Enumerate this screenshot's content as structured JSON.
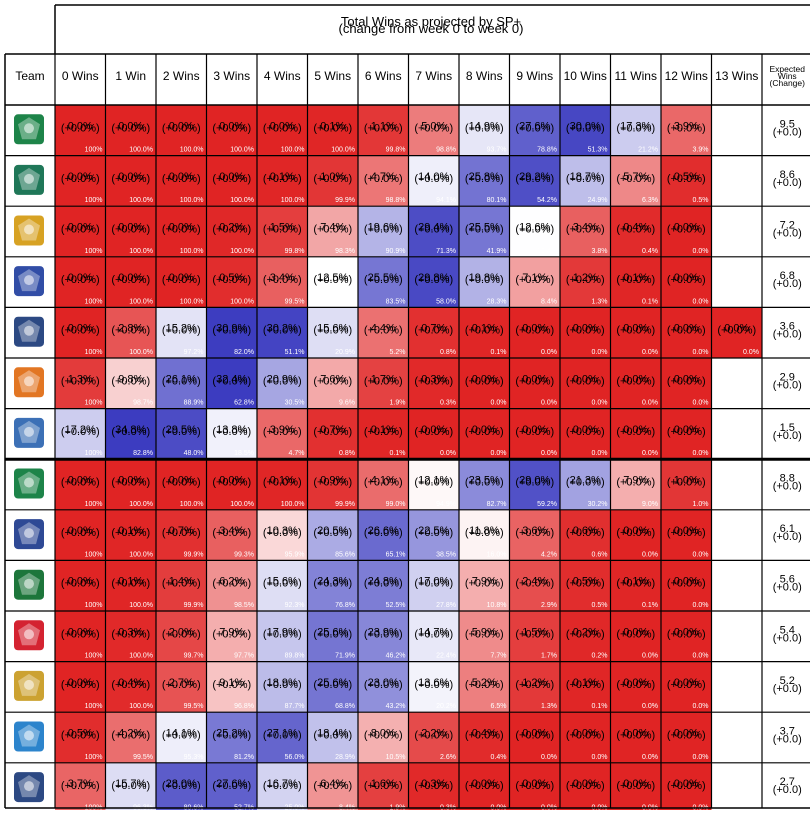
{
  "chart_data": {
    "type": "heatmap",
    "title": "Total Wins as projected by SP+",
    "subtitle": "(change from week 0 to week 0)",
    "header_label": "Team",
    "columns": [
      "0 Wins",
      "1 Win",
      "2 Wins",
      "3 Wins",
      "4 Wins",
      "5 Wins",
      "6 Wins",
      "7 Wins",
      "8 Wins",
      "9 Wins",
      "10 Wins",
      "11 Wins",
      "12 Wins",
      "13 Wins"
    ],
    "expected_header": [
      "Expected",
      "Wins",
      "(Change)"
    ],
    "change_text": "(+0.0%)",
    "exp_change_text": "(+0.0)",
    "colors": {
      "low": "#e02424",
      "mid": "#ffffff",
      "high": "#3c3cc0"
    },
    "teams": [
      {
        "logo": "north-texas-logo",
        "color": "#0a7a3a",
        "expected": "9.5",
        "probs": [
          "0.0%",
          "0.0%",
          "0.0%",
          "0.0%",
          "0.0%",
          "0.1%",
          "1.1%",
          "5.0%",
          "14.9%",
          "27.6%",
          "30.0%",
          "17.3%",
          "3.9%",
          null
        ],
        "values": [
          0,
          0,
          0,
          0,
          0,
          0.1,
          1.1,
          5.0,
          14.9,
          27.6,
          30.0,
          17.3,
          3.9,
          null
        ],
        "cum": [
          "100%",
          "100.0%",
          "100.0%",
          "100.0%",
          "100.0%",
          "100.0%",
          "99.8%",
          "98.8%",
          "93.7%",
          "78.8%",
          "51.3%",
          "21.2%",
          "3.9%",
          null
        ]
      },
      {
        "logo": "utsa-logo",
        "color": "#0c6b4a",
        "expected": "8.6",
        "probs": [
          "0.0%",
          "0.0%",
          "0.0%",
          "0.0%",
          "0.1%",
          "1.0%",
          "4.7%",
          "14.0%",
          "25.8%",
          "29.2%",
          "18.7%",
          "5.7%",
          "0.5%",
          null
        ],
        "values": [
          0,
          0,
          0,
          0,
          0.1,
          1.0,
          4.7,
          14.0,
          25.8,
          29.2,
          18.7,
          5.7,
          0.5,
          null
        ],
        "cum": [
          "100%",
          "100.0%",
          "100.0%",
          "100.0%",
          "100.0%",
          "99.9%",
          "98.8%",
          "94.1%",
          "80.1%",
          "54.2%",
          "24.9%",
          "6.3%",
          "0.5%",
          null
        ]
      },
      {
        "logo": "southern-miss-logo",
        "color": "#d49a10",
        "expected": "7.2",
        "probs": [
          "0.0%",
          "0.0%",
          "0.0%",
          "0.2%",
          "1.5%",
          "7.4%",
          "19.6%",
          "29.4%",
          "25.5%",
          "12.6%",
          "3.4%",
          "0.4%",
          "0.0%",
          null
        ],
        "values": [
          0,
          0,
          0,
          0.2,
          1.5,
          7.4,
          19.6,
          29.4,
          25.5,
          12.6,
          3.4,
          0.4,
          0.0,
          null
        ],
        "cum": [
          "100%",
          "100.0%",
          "100.0%",
          "100.0%",
          "99.8%",
          "98.3%",
          "90.9%",
          "71.3%",
          "41.9%",
          "16.4%",
          "3.8%",
          "0.4%",
          "0.0%",
          null
        ]
      },
      {
        "logo": "louisiana-tech-logo",
        "color": "#1f3e9e",
        "expected": "6.8",
        "probs": [
          "0.0%",
          "0.0%",
          "0.0%",
          "0.5%",
          "3.4%",
          "12.5%",
          "25.5%",
          "29.8%",
          "19.8%",
          "7.1%",
          "1.2%",
          "0.1%",
          "0.0%",
          null
        ],
        "values": [
          0,
          0,
          0,
          0.5,
          3.4,
          12.5,
          25.5,
          29.8,
          19.8,
          7.1,
          1.2,
          0.1,
          0.0,
          null
        ],
        "cum": [
          "100%",
          "100.0%",
          "100.0%",
          "100.0%",
          "99.5%",
          "96.0%",
          "83.5%",
          "58.0%",
          "28.3%",
          "8.4%",
          "1.3%",
          "0.1%",
          "0.0%",
          null
        ]
      },
      {
        "logo": "rice-logo",
        "color": "#1a3a78",
        "expected": "3.6",
        "probs": [
          "0.0%",
          "2.8%",
          "15.2%",
          "30.9%",
          "30.2%",
          "15.6%",
          "4.4%",
          "0.7%",
          "0.1%",
          "0.0%",
          "0.0%",
          "0.0%",
          "0.0%",
          "0.0%"
        ],
        "values": [
          0,
          2.8,
          15.2,
          30.9,
          30.2,
          15.6,
          4.4,
          0.7,
          0.1,
          0.0,
          0.0,
          0.0,
          0.0,
          0.0
        ],
        "cum": [
          "100%",
          "100.0%",
          "97.2%",
          "82.0%",
          "51.1%",
          "20.9%",
          "5.2%",
          "0.8%",
          "0.1%",
          "0.0%",
          "0.0%",
          "0.0%",
          "0.0%",
          "0.0%"
        ]
      },
      {
        "logo": "utep-logo",
        "color": "#e06a10",
        "expected": "2.9",
        "probs": [
          "1.3%",
          "9.8%",
          "26.1%",
          "32.4%",
          "20.9%",
          "7.6%",
          "1.7%",
          "0.3%",
          "0.0%",
          "0.0%",
          "0.0%",
          "0.0%",
          "0.0%",
          null
        ],
        "values": [
          1.3,
          9.8,
          26.1,
          32.4,
          20.9,
          7.6,
          1.7,
          0.3,
          0.0,
          0.0,
          0.0,
          0.0,
          0.0,
          null
        ],
        "cum": [
          "100%",
          "98.7%",
          "88.9%",
          "62.8%",
          "30.5%",
          "9.6%",
          "1.9%",
          "0.3%",
          "0.0%",
          "0.0%",
          "0.0%",
          "0.0%",
          "0.0%",
          null
        ]
      },
      {
        "logo": "charlotte-logo",
        "color": "#2b64b0",
        "expected": "1.5",
        "probs": [
          "17.2%",
          "34.8%",
          "29.5%",
          "13.8%",
          "3.9%",
          "0.7%",
          "0.1%",
          "0.0%",
          "0.0%",
          "0.0%",
          "0.0%",
          "0.0%",
          "0.0%",
          null
        ],
        "values": [
          17.2,
          34.8,
          29.5,
          13.8,
          3.9,
          0.7,
          0.1,
          0.0,
          0.0,
          0.0,
          0.0,
          0.0,
          0.0,
          null
        ],
        "cum": [
          "100%",
          "82.8%",
          "48.0%",
          "18.5%",
          "4.7%",
          "0.8%",
          "0.1%",
          "0.0%",
          "0.0%",
          "0.0%",
          "0.0%",
          "0.0%",
          "0.0%",
          null
        ]
      },
      {
        "logo": "marshall-logo",
        "color": "#0a7a3a",
        "expected": "8.8",
        "probs": [
          "0.0%",
          "0.0%",
          "0.0%",
          "0.0%",
          "0.1%",
          "0.9%",
          "4.1%",
          "12.1%",
          "23.5%",
          "29.0%",
          "21.3%",
          "7.9%",
          "1.0%",
          null
        ],
        "values": [
          0,
          0,
          0,
          0,
          0.1,
          0.9,
          4.1,
          12.1,
          23.5,
          29.0,
          21.3,
          7.9,
          1.0,
          null
        ],
        "cum": [
          "100%",
          "100.0%",
          "100.0%",
          "100.0%",
          "100.0%",
          "99.9%",
          "99.0%",
          "94.9%",
          "82.7%",
          "59.2%",
          "30.2%",
          "9.0%",
          "1.0%",
          null
        ]
      },
      {
        "logo": "fau-logo",
        "color": "#1c3a8c",
        "expected": "6.1",
        "probs": [
          "0.0%",
          "0.1%",
          "0.7%",
          "3.4%",
          "10.3%",
          "20.5%",
          "26.6%",
          "22.5%",
          "11.8%",
          "3.6%",
          "0.6%",
          "0.0%",
          "0.0%",
          null
        ],
        "values": [
          0,
          0.1,
          0.7,
          3.4,
          10.3,
          20.5,
          26.6,
          22.5,
          11.8,
          3.6,
          0.6,
          0.0,
          0.0,
          null
        ],
        "cum": [
          "100%",
          "100.0%",
          "99.9%",
          "99.3%",
          "95.9%",
          "85.6%",
          "65.1%",
          "38.5%",
          "16.0%",
          "4.2%",
          "0.6%",
          "0.0%",
          "0.0%",
          null
        ]
      },
      {
        "logo": "charlotte-49ers-logo",
        "color": "#0a6a2a",
        "expected": "5.6",
        "probs": [
          "0.0%",
          "0.1%",
          "1.4%",
          "6.2%",
          "15.6%",
          "24.3%",
          "24.8%",
          "17.0%",
          "7.9%",
          "2.4%",
          "0.5%",
          "0.1%",
          "0.0%",
          null
        ],
        "values": [
          0,
          0.1,
          1.4,
          6.2,
          15.6,
          24.3,
          24.8,
          17.0,
          7.9,
          2.4,
          0.5,
          0.1,
          0.0,
          null
        ],
        "cum": [
          "100%",
          "100.0%",
          "99.9%",
          "98.5%",
          "92.3%",
          "76.8%",
          "52.5%",
          "27.8%",
          "10.8%",
          "2.9%",
          "0.5%",
          "0.1%",
          "0.0%",
          null
        ]
      },
      {
        "logo": "wku-logo",
        "color": "#d01020",
        "expected": "5.4",
        "probs": [
          "0.0%",
          "0.3%",
          "2.0%",
          "7.9%",
          "17.9%",
          "25.6%",
          "23.9%",
          "14.7%",
          "5.9%",
          "1.5%",
          "0.2%",
          "0.0%",
          "0.0%",
          null
        ],
        "values": [
          0,
          0.3,
          2.0,
          7.9,
          17.9,
          25.6,
          23.9,
          14.7,
          5.9,
          1.5,
          0.2,
          0.0,
          0.0,
          null
        ],
        "cum": [
          "100%",
          "100.0%",
          "99.7%",
          "97.7%",
          "89.8%",
          "71.9%",
          "46.2%",
          "22.4%",
          "7.7%",
          "1.7%",
          "0.2%",
          "0.0%",
          "0.0%",
          null
        ]
      },
      {
        "logo": "fiu-logo",
        "color": "#c89a20",
        "expected": "5.2",
        "probs": [
          "0.0%",
          "0.4%",
          "2.7%",
          "9.1%",
          "18.9%",
          "25.6%",
          "23.0%",
          "13.6%",
          "5.2%",
          "1.2%",
          "0.1%",
          "0.0%",
          "0.0%",
          null
        ],
        "values": [
          0,
          0.4,
          2.7,
          9.1,
          18.9,
          25.6,
          23.0,
          13.6,
          5.2,
          1.2,
          0.1,
          0.0,
          0.0,
          null
        ],
        "cum": [
          "100%",
          "100.0%",
          "99.5%",
          "96.8%",
          "87.7%",
          "68.8%",
          "43.2%",
          "20.2%",
          "6.5%",
          "1.3%",
          "0.1%",
          "0.0%",
          "0.0%",
          null
        ]
      },
      {
        "logo": "middle-tennessee-logo",
        "color": "#1a7ac8",
        "expected": "3.7",
        "probs": [
          "0.5%",
          "4.2%",
          "14.1%",
          "25.2%",
          "27.1%",
          "18.4%",
          "8.0%",
          "2.2%",
          "0.4%",
          "0.0%",
          "0.0%",
          "0.0%",
          "0.0%",
          null
        ],
        "values": [
          0.5,
          4.2,
          14.1,
          25.2,
          27.1,
          18.4,
          8.0,
          2.2,
          0.4,
          0.0,
          0.0,
          0.0,
          0.0,
          null
        ],
        "cum": [
          "100%",
          "99.5%",
          "95.3%",
          "81.2%",
          "56.0%",
          "28.9%",
          "10.5%",
          "2.6%",
          "0.4%",
          "0.0%",
          "0.0%",
          "0.0%",
          "0.0%",
          null
        ]
      },
      {
        "logo": "old-dominion-logo",
        "color": "#1a3a78",
        "expected": "2.7",
        "probs": [
          "3.7%",
          "15.7%",
          "28.0%",
          "27.6%",
          "16.7%",
          "6.4%",
          "1.6%",
          "0.3%",
          "0.0%",
          "0.0%",
          "0.0%",
          "0.0%",
          "0.0%",
          null
        ],
        "values": [
          3.7,
          15.7,
          28.0,
          27.6,
          16.7,
          6.4,
          1.6,
          0.3,
          0.0,
          0.0,
          0.0,
          0.0,
          0.0,
          null
        ],
        "cum": [
          "100%",
          "96.3%",
          "80.6%",
          "52.7%",
          "25.0%",
          "8.4%",
          "1.9%",
          "0.3%",
          "0.0%",
          "0.0%",
          "0.0%",
          "0.0%",
          "0.0%",
          null
        ]
      }
    ]
  }
}
